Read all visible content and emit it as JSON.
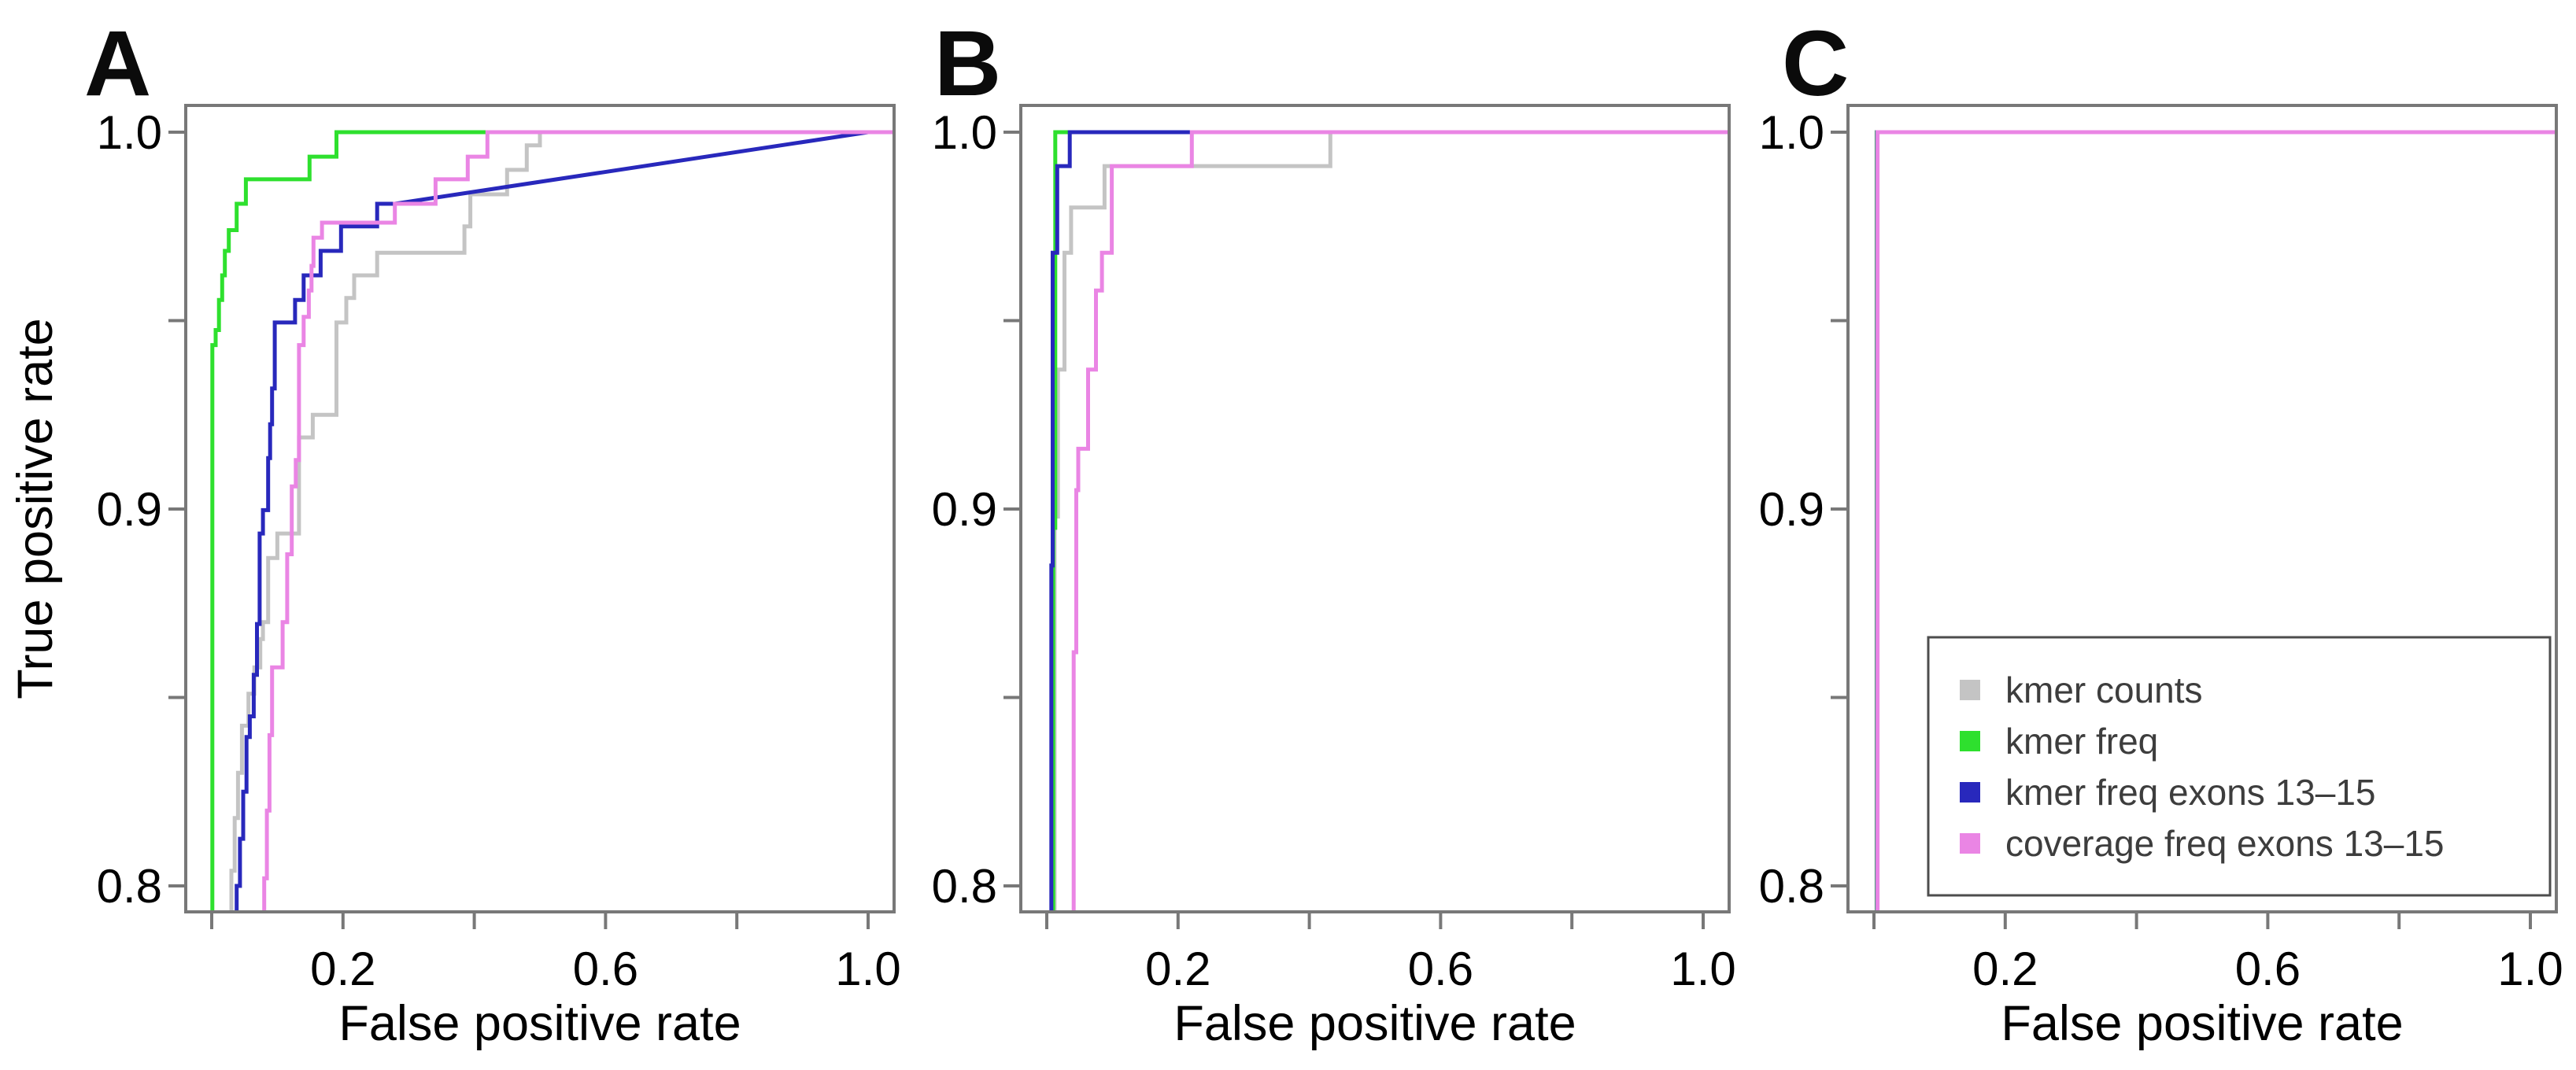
{
  "figure": {
    "ylabel": "True positive rate",
    "xlabel": "False positive rate",
    "panel_letters": [
      "A",
      "B",
      "C"
    ],
    "axis_color": "#787878",
    "text_color": "#000000"
  },
  "legend": {
    "items": [
      {
        "label": "kmer counts",
        "color": "#c4c4c4"
      },
      {
        "label": "kmer freq",
        "color": "#2ee02e"
      },
      {
        "label": "kmer freq exons 13–15",
        "color": "#2828bc"
      },
      {
        "label": "coverage freq exons 13–15",
        "color": "#ea85e4"
      }
    ],
    "border_color": "#4d4d4d",
    "text_color": "#3d3d3d"
  },
  "chart_data": [
    {
      "id": "A",
      "type": "line",
      "panel_label": "A",
      "xlabel": "False positive rate",
      "ylabel": "True positive rate",
      "xlim": [
        0,
        1
      ],
      "ylim": [
        0.8,
        1.0
      ],
      "grid": false,
      "x_ticks": [
        {
          "v": 0,
          "label": ""
        },
        {
          "v": 0.2,
          "label": "0.2"
        },
        {
          "v": 0.4,
          "label": ""
        },
        {
          "v": 0.6,
          "label": "0.6"
        },
        {
          "v": 0.8,
          "label": ""
        },
        {
          "v": 1.0,
          "label": "1.0"
        }
      ],
      "y_ticks": [
        {
          "v": 0.8,
          "label": "0.8"
        },
        {
          "v": 0.85,
          "label": ""
        },
        {
          "v": 0.9,
          "label": "0.9"
        },
        {
          "v": 0.95,
          "label": ""
        },
        {
          "v": 1.0,
          "label": "1.0"
        }
      ],
      "series": [
        {
          "name": "kmer counts",
          "color": "#c4c4c4",
          "points": [
            [
              0.03,
              0.791
            ],
            [
              0.03,
              0.804
            ],
            [
              0.035,
              0.804
            ],
            [
              0.035,
              0.818
            ],
            [
              0.04,
              0.818
            ],
            [
              0.04,
              0.83
            ],
            [
              0.046,
              0.83
            ],
            [
              0.046,
              0.8425
            ],
            [
              0.056,
              0.8425
            ],
            [
              0.056,
              0.851
            ],
            [
              0.065,
              0.851
            ],
            [
              0.065,
              0.858
            ],
            [
              0.074,
              0.858
            ],
            [
              0.074,
              0.8655
            ],
            [
              0.078,
              0.8655
            ],
            [
              0.078,
              0.87
            ],
            [
              0.086,
              0.87
            ],
            [
              0.086,
              0.887
            ],
            [
              0.1,
              0.887
            ],
            [
              0.1,
              0.8935
            ],
            [
              0.133,
              0.8935
            ],
            [
              0.133,
              0.919
            ],
            [
              0.154,
              0.919
            ],
            [
              0.154,
              0.925
            ],
            [
              0.19,
              0.925
            ],
            [
              0.19,
              0.9495
            ],
            [
              0.205,
              0.9495
            ],
            [
              0.205,
              0.956
            ],
            [
              0.217,
              0.956
            ],
            [
              0.217,
              0.962
            ],
            [
              0.252,
              0.962
            ],
            [
              0.252,
              0.968
            ],
            [
              0.385,
              0.968
            ],
            [
              0.385,
              0.975
            ],
            [
              0.394,
              0.975
            ],
            [
              0.394,
              0.9835
            ],
            [
              0.45,
              0.9835
            ],
            [
              0.45,
              0.99
            ],
            [
              0.48,
              0.99
            ],
            [
              0.48,
              0.9965
            ],
            [
              0.5,
              0.9965
            ],
            [
              0.5,
              1.0
            ],
            [
              0.52,
              1.0
            ]
          ]
        },
        {
          "name": "kmer freq",
          "color": "#2ee02e",
          "points": [
            [
              0.001,
              0.791
            ],
            [
              0.001,
              0.9435
            ],
            [
              0.006,
              0.9435
            ],
            [
              0.006,
              0.9475
            ],
            [
              0.011,
              0.9475
            ],
            [
              0.011,
              0.9555
            ],
            [
              0.016,
              0.9555
            ],
            [
              0.016,
              0.962
            ],
            [
              0.02,
              0.962
            ],
            [
              0.02,
              0.9685
            ],
            [
              0.026,
              0.9685
            ],
            [
              0.026,
              0.974
            ],
            [
              0.038,
              0.974
            ],
            [
              0.038,
              0.981
            ],
            [
              0.052,
              0.981
            ],
            [
              0.052,
              0.9875
            ],
            [
              0.149,
              0.9875
            ],
            [
              0.149,
              0.9935
            ],
            [
              0.19,
              0.9935
            ],
            [
              0.19,
              1.0
            ],
            [
              0.425,
              1.0
            ]
          ]
        },
        {
          "name": "kmer freq exons 13–15",
          "color": "#2828bc",
          "points": [
            [
              0.038,
              0.791
            ],
            [
              0.038,
              0.8
            ],
            [
              0.043,
              0.8
            ],
            [
              0.043,
              0.8125
            ],
            [
              0.048,
              0.8125
            ],
            [
              0.048,
              0.825
            ],
            [
              0.053,
              0.825
            ],
            [
              0.053,
              0.8395
            ],
            [
              0.058,
              0.8395
            ],
            [
              0.058,
              0.845
            ],
            [
              0.064,
              0.845
            ],
            [
              0.064,
              0.856
            ],
            [
              0.069,
              0.856
            ],
            [
              0.069,
              0.8695
            ],
            [
              0.073,
              0.8695
            ],
            [
              0.073,
              0.8935
            ],
            [
              0.078,
              0.8935
            ],
            [
              0.078,
              0.8997
            ],
            [
              0.086,
              0.8997
            ],
            [
              0.086,
              0.9135
            ],
            [
              0.089,
              0.9135
            ],
            [
              0.089,
              0.9225
            ],
            [
              0.092,
              0.9225
            ],
            [
              0.092,
              0.932
            ],
            [
              0.096,
              0.932
            ],
            [
              0.096,
              0.9495
            ],
            [
              0.127,
              0.9495
            ],
            [
              0.127,
              0.9555
            ],
            [
              0.14,
              0.9555
            ],
            [
              0.14,
              0.962
            ],
            [
              0.166,
              0.962
            ],
            [
              0.166,
              0.9685
            ],
            [
              0.197,
              0.9685
            ],
            [
              0.197,
              0.975
            ],
            [
              0.252,
              0.975
            ],
            [
              0.252,
              0.981
            ],
            [
              0.279,
              0.981
            ],
            [
              1.0,
              1.0
            ]
          ]
        },
        {
          "name": "coverage freq exons 13–15",
          "color": "#ea85e4",
          "points": [
            [
              0.08,
              0.791
            ],
            [
              0.08,
              0.802
            ],
            [
              0.084,
              0.802
            ],
            [
              0.084,
              0.82
            ],
            [
              0.088,
              0.82
            ],
            [
              0.088,
              0.84
            ],
            [
              0.092,
              0.84
            ],
            [
              0.092,
              0.858
            ],
            [
              0.108,
              0.858
            ],
            [
              0.108,
              0.87
            ],
            [
              0.115,
              0.87
            ],
            [
              0.115,
              0.888
            ],
            [
              0.122,
              0.888
            ],
            [
              0.122,
              0.906
            ],
            [
              0.128,
              0.906
            ],
            [
              0.128,
              0.913
            ],
            [
              0.133,
              0.913
            ],
            [
              0.133,
              0.9435
            ],
            [
              0.14,
              0.9435
            ],
            [
              0.14,
              0.951
            ],
            [
              0.148,
              0.951
            ],
            [
              0.148,
              0.958
            ],
            [
              0.152,
              0.958
            ],
            [
              0.152,
              0.9645
            ],
            [
              0.155,
              0.9645
            ],
            [
              0.155,
              0.972
            ],
            [
              0.168,
              0.972
            ],
            [
              0.168,
              0.976
            ],
            [
              0.279,
              0.976
            ],
            [
              0.279,
              0.981
            ],
            [
              0.341,
              0.981
            ],
            [
              0.341,
              0.9875
            ],
            [
              0.39,
              0.9875
            ],
            [
              0.39,
              0.9935
            ],
            [
              0.42,
              0.9935
            ],
            [
              0.42,
              1.0
            ],
            [
              1.045,
              1.0
            ]
          ]
        }
      ]
    },
    {
      "id": "B",
      "type": "line",
      "panel_label": "B",
      "xlabel": "False positive rate",
      "ylabel": "",
      "xlim": [
        0,
        1
      ],
      "ylim": [
        0.8,
        1.0
      ],
      "grid": false,
      "x_ticks": [
        {
          "v": 0,
          "label": ""
        },
        {
          "v": 0.2,
          "label": "0.2"
        },
        {
          "v": 0.4,
          "label": ""
        },
        {
          "v": 0.6,
          "label": "0.6"
        },
        {
          "v": 0.8,
          "label": ""
        },
        {
          "v": 1.0,
          "label": "1.0"
        }
      ],
      "y_ticks": [
        {
          "v": 0.8,
          "label": "0.8"
        },
        {
          "v": 0.85,
          "label": ""
        },
        {
          "v": 0.9,
          "label": "0.9"
        },
        {
          "v": 0.95,
          "label": ""
        },
        {
          "v": 1.0,
          "label": "1.0"
        }
      ],
      "series": [
        {
          "name": "kmer counts",
          "color": "#c4c4c4",
          "points": [
            [
              0.012,
              0.791
            ],
            [
              0.012,
              0.898
            ],
            [
              0.017,
              0.898
            ],
            [
              0.017,
              0.937
            ],
            [
              0.027,
              0.937
            ],
            [
              0.027,
              0.968
            ],
            [
              0.037,
              0.968
            ],
            [
              0.037,
              0.98
            ],
            [
              0.088,
              0.98
            ],
            [
              0.088,
              0.991
            ],
            [
              0.432,
              0.991
            ],
            [
              0.432,
              1.0
            ],
            [
              0.45,
              1.0
            ]
          ]
        },
        {
          "name": "kmer freq",
          "color": "#2ee02e",
          "points": [
            [
              0.01,
              0.791
            ],
            [
              0.01,
              0.895
            ],
            [
              0.013,
              0.895
            ],
            [
              0.013,
              1.0
            ],
            [
              0.04,
              1.0
            ]
          ]
        },
        {
          "name": "kmer freq exons 13–15",
          "color": "#2828bc",
          "points": [
            [
              0.007,
              0.791
            ],
            [
              0.007,
              0.885
            ],
            [
              0.009,
              0.885
            ],
            [
              0.009,
              0.968
            ],
            [
              0.016,
              0.968
            ],
            [
              0.016,
              0.991
            ],
            [
              0.035,
              0.991
            ],
            [
              0.035,
              1.0
            ],
            [
              0.225,
              1.0
            ]
          ]
        },
        {
          "name": "coverage freq exons 13–15",
          "color": "#ea85e4",
          "points": [
            [
              0.041,
              0.791
            ],
            [
              0.041,
              0.862
            ],
            [
              0.045,
              0.862
            ],
            [
              0.045,
              0.905
            ],
            [
              0.048,
              0.905
            ],
            [
              0.048,
              0.916
            ],
            [
              0.063,
              0.916
            ],
            [
              0.063,
              0.937
            ],
            [
              0.075,
              0.937
            ],
            [
              0.075,
              0.958
            ],
            [
              0.084,
              0.958
            ],
            [
              0.084,
              0.968
            ],
            [
              0.099,
              0.968
            ],
            [
              0.099,
              0.991
            ],
            [
              0.221,
              0.991
            ],
            [
              0.221,
              1.0
            ],
            [
              1.045,
              1.0
            ]
          ]
        }
      ]
    },
    {
      "id": "C",
      "type": "line",
      "panel_label": "C",
      "xlabel": "False positive rate",
      "ylabel": "",
      "xlim": [
        0,
        1
      ],
      "ylim": [
        0.8,
        1.0
      ],
      "grid": false,
      "x_ticks": [
        {
          "v": 0,
          "label": ""
        },
        {
          "v": 0.2,
          "label": "0.2"
        },
        {
          "v": 0.4,
          "label": ""
        },
        {
          "v": 0.6,
          "label": "0.6"
        },
        {
          "v": 0.8,
          "label": ""
        },
        {
          "v": 1.0,
          "label": "1.0"
        }
      ],
      "y_ticks": [
        {
          "v": 0.8,
          "label": "0.8"
        },
        {
          "v": 0.85,
          "label": ""
        },
        {
          "v": 0.9,
          "label": "0.9"
        },
        {
          "v": 0.95,
          "label": ""
        },
        {
          "v": 1.0,
          "label": "1.0"
        }
      ],
      "series": [
        {
          "name": "kmer counts",
          "color": "#c4c4c4",
          "points": [
            [
              0.004,
              0.791
            ],
            [
              0.004,
              1.0
            ],
            [
              1.045,
              1.0
            ]
          ]
        },
        {
          "name": "kmer freq",
          "color": "#2ee02e",
          "points": [
            [
              0.0045,
              0.791
            ],
            [
              0.0045,
              1.0
            ],
            [
              1.045,
              1.0
            ]
          ]
        },
        {
          "name": "kmer freq exons 13–15",
          "color": "#2828bc",
          "points": [
            [
              0.005,
              0.791
            ],
            [
              0.005,
              1.0
            ],
            [
              1.045,
              1.0
            ]
          ]
        },
        {
          "name": "coverage freq exons 13–15",
          "color": "#ea85e4",
          "points": [
            [
              0.0055,
              0.791
            ],
            [
              0.0055,
              1.0
            ],
            [
              1.045,
              1.0
            ]
          ]
        }
      ]
    }
  ]
}
